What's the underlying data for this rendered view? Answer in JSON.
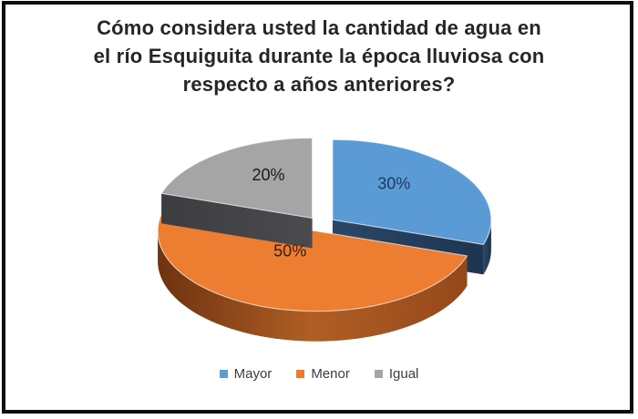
{
  "chart_data": {
    "type": "pie",
    "style": "3d-exploded",
    "title": "Cómo considera usted la cantidad de agua en\nel río Esquiguita durante la época lluviosa con\nrespecto a años anteriores?",
    "title_color": "#262626",
    "labels": [
      "Mayor",
      "Menor",
      "Igual"
    ],
    "values": [
      30,
      50,
      20
    ],
    "unit": "%",
    "data_labels": [
      "30%",
      "50%",
      "20%"
    ],
    "start_angle_deg": -90,
    "direction": "clockwise",
    "background": "#ffffff",
    "border_color": "#0e0e0e",
    "colors": {
      "top": [
        "#5B9BD5",
        "#ED7D31",
        "#A5A5A5"
      ],
      "side": [
        [
          "#2B4767",
          "#1E3550"
        ],
        [
          "#6E3310",
          "#B05E24",
          "#96481A"
        ],
        [
          "#3C3D41",
          "#4A4B4F"
        ]
      ],
      "data_label": [
        "#1F3864",
        "#3C1E05",
        "#1A1A1A"
      ]
    },
    "legend": {
      "position": "bottom",
      "items": [
        "Mayor",
        "Menor",
        "Igual"
      ],
      "text_color": "#3D3D3D"
    }
  }
}
